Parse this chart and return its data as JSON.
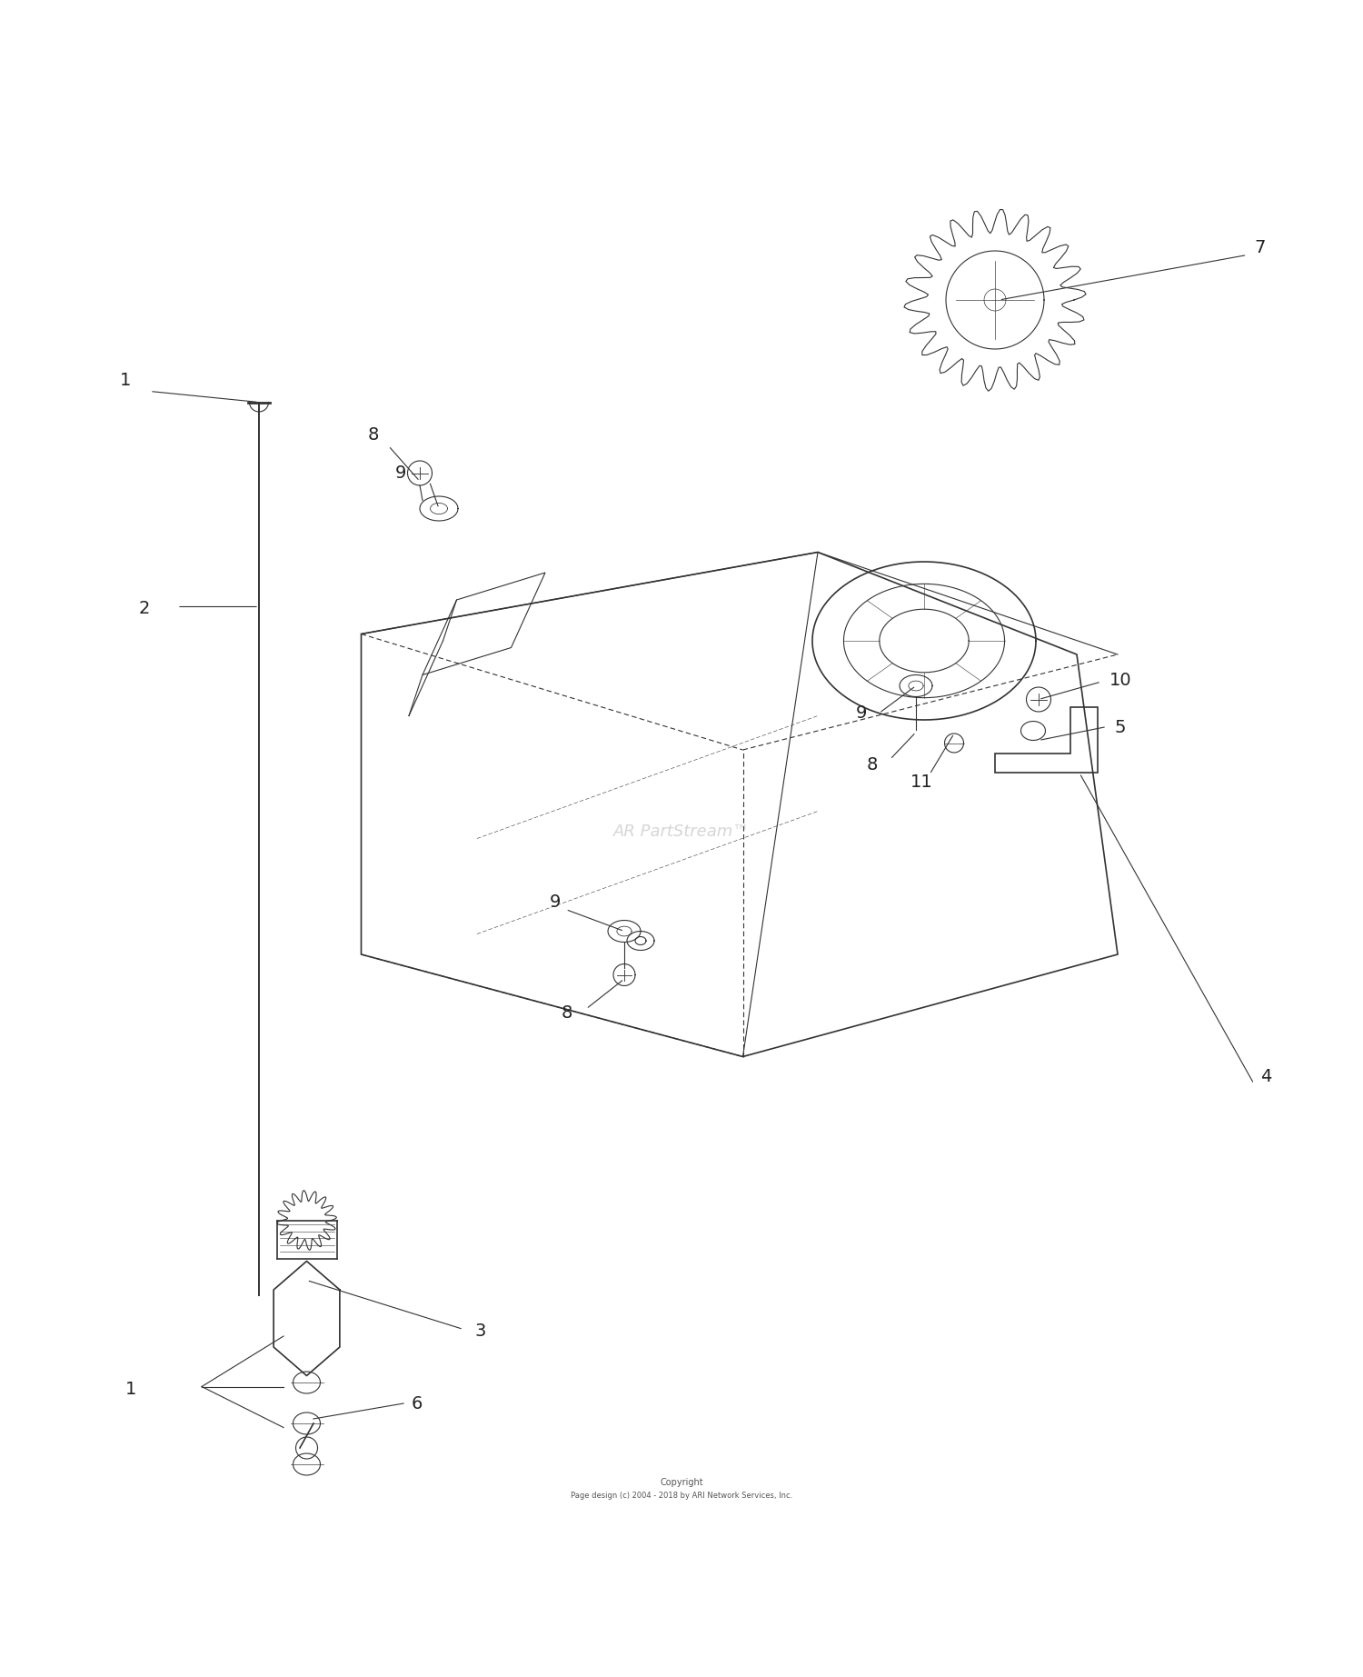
{
  "bg_color": "#ffffff",
  "line_color": "#333333",
  "label_color": "#222222",
  "watermark_text": "AR PartStream™",
  "copyright_line1": "Copyright",
  "copyright_line2": "Page design (c) 2004 - 2018 by ARI Network Services, Inc."
}
